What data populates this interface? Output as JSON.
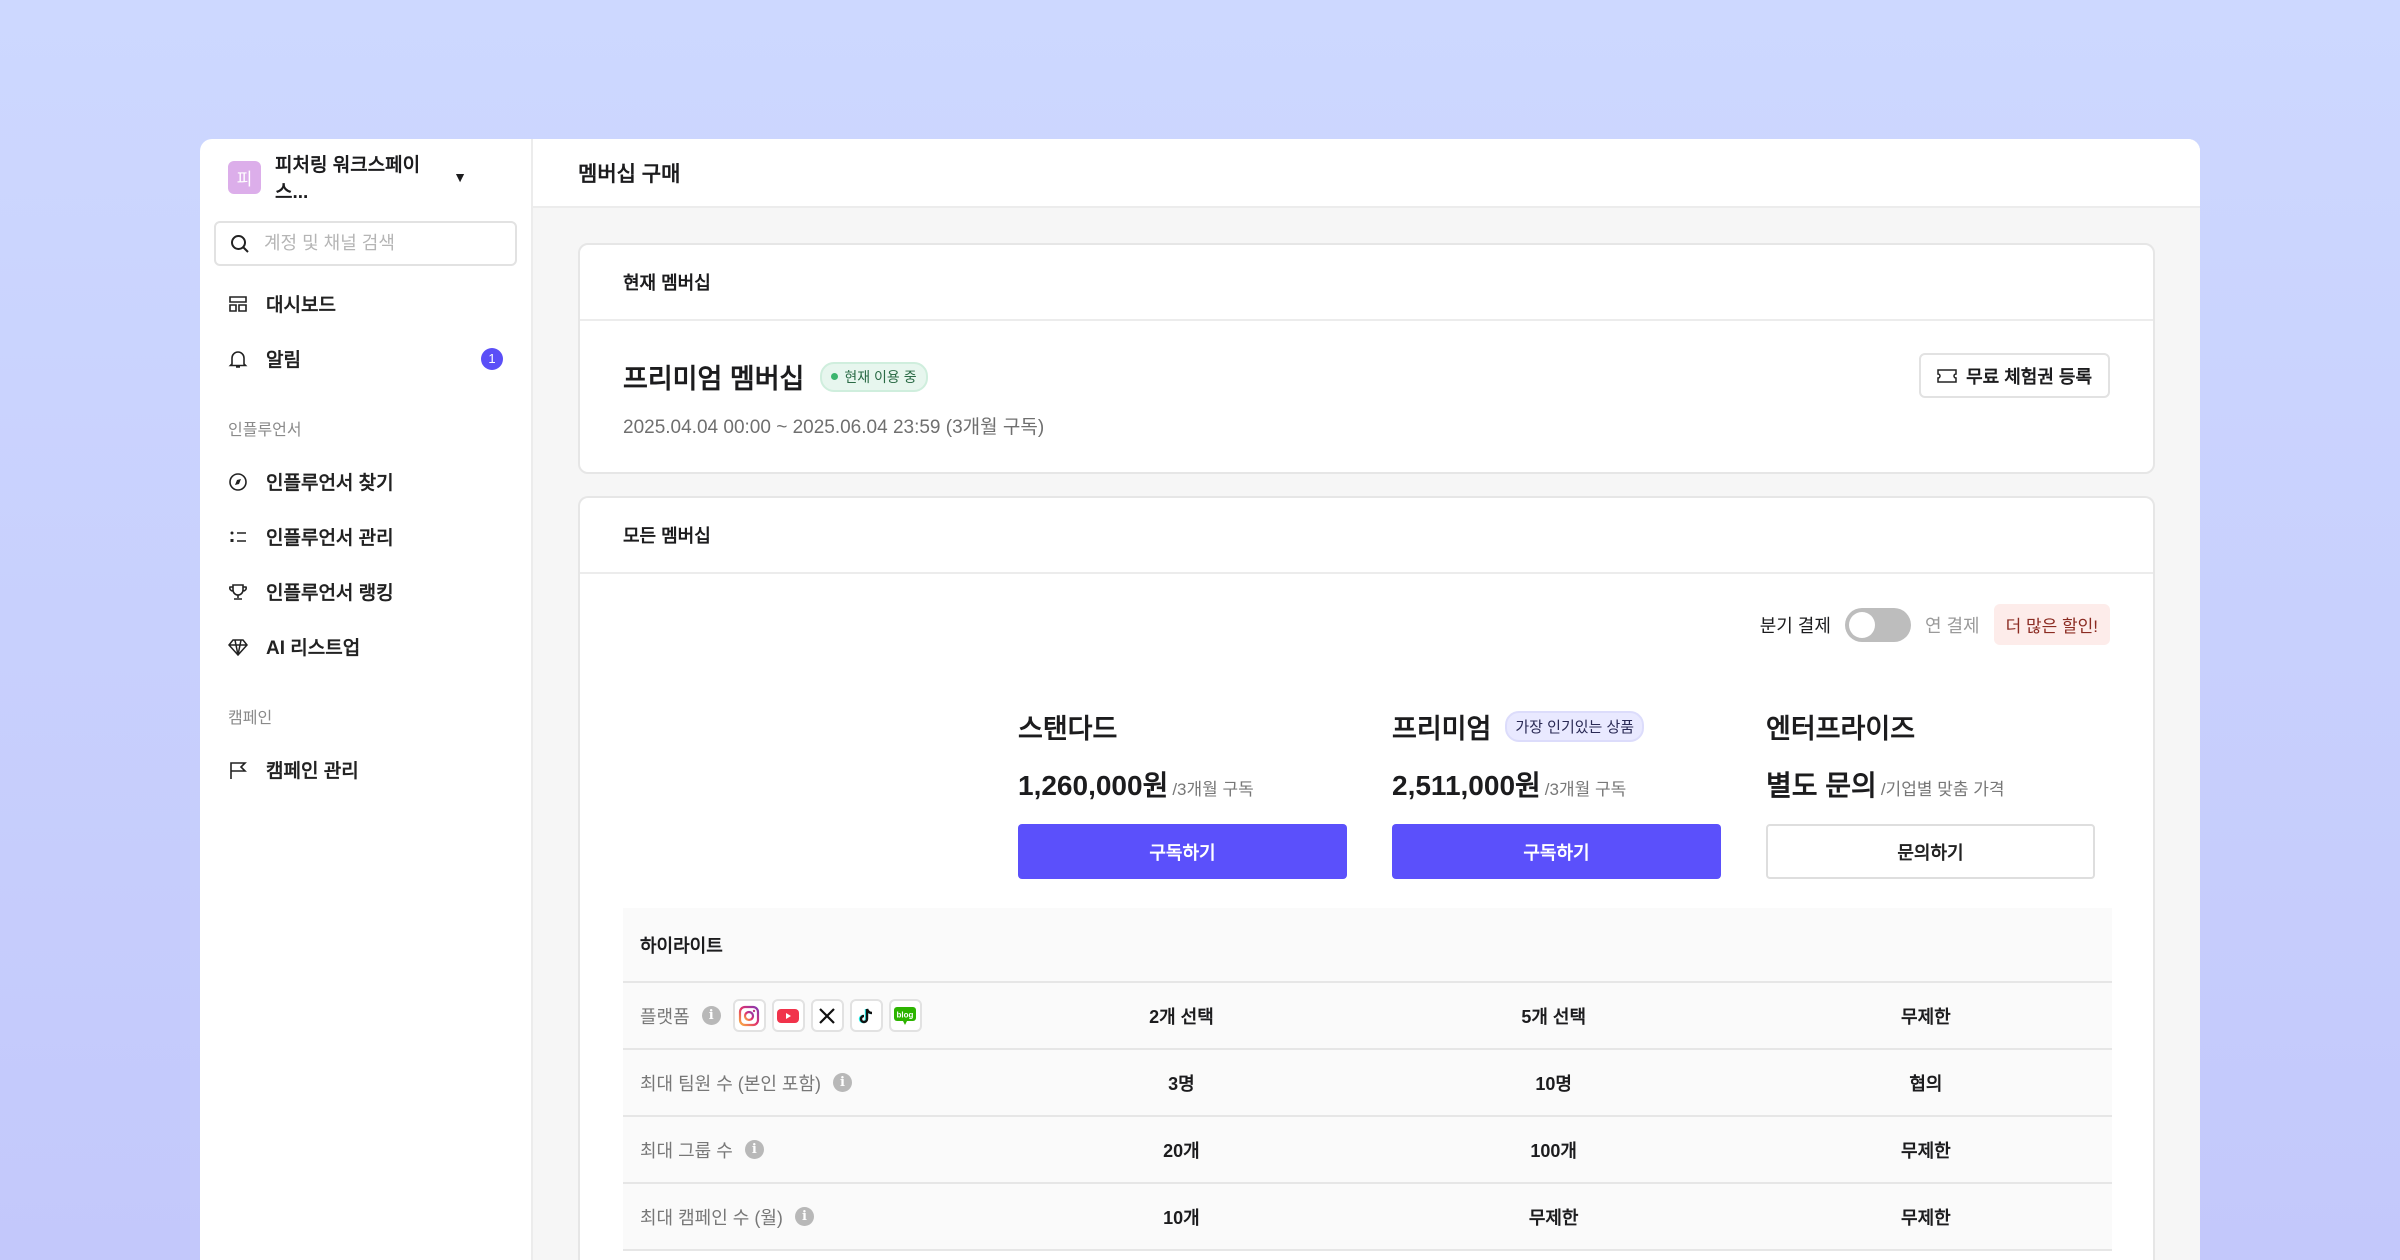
{
  "sidebar": {
    "workspace_initial": "피",
    "workspace_name": "피처링 워크스페이스...",
    "search_placeholder": "계정 및 채널 검색",
    "items": [
      {
        "label": "대시보드",
        "icon": "dashboard-icon"
      },
      {
        "label": "알림",
        "icon": "bell-icon",
        "badge": "1"
      }
    ],
    "section_influencer": "인플루언서",
    "influencer_items": [
      {
        "label": "인플루언서 찾기",
        "icon": "compass-icon"
      },
      {
        "label": "인플루언서 관리",
        "icon": "list-icon"
      },
      {
        "label": "인플루언서 랭킹",
        "icon": "trophy-icon"
      },
      {
        "label": "AI 리스트업",
        "icon": "diamond-icon"
      }
    ],
    "section_campaign": "캠페인",
    "campaign_items": [
      {
        "label": "캠페인 관리",
        "icon": "flag-icon"
      }
    ]
  },
  "header": {
    "title": "멤버십 구매"
  },
  "current": {
    "heading": "현재 멤버십",
    "plan": "프리미엄 멤버십",
    "status": "현재 이용 중",
    "period": "2025.04.04 00:00 ~ 2025.06.04 23:59 (3개월 구독)",
    "trial_button": "무료 체험권 등록"
  },
  "all": {
    "heading": "모든 멤버십",
    "billing_quarterly": "분기 결제",
    "billing_annual": "연 결제",
    "annual_enabled": false,
    "discount": "더 많은 할인!",
    "plans": [
      {
        "name": "스탠다드",
        "price": "1,260,000원",
        "unit": "/3개월 구독",
        "button": "구독하기"
      },
      {
        "name": "프리미엄",
        "tag": "가장 인기있는 상품",
        "price": "2,511,000원",
        "unit": "/3개월 구독",
        "button": "구독하기"
      },
      {
        "name": "엔터프라이즈",
        "price": "별도 문의",
        "unit": "/기업별 맞춤 가격",
        "button": "문의하기"
      }
    ],
    "table": {
      "heading": "하이라이트",
      "platforms": [
        "instagram",
        "youtube",
        "x",
        "tiktok",
        "blog"
      ],
      "rows": [
        {
          "label": "플랫폼",
          "values": [
            "2개 선택",
            "5개 선택",
            "무제한"
          ]
        },
        {
          "label": "최대 팀원 수 (본인 포함)",
          "values": [
            "3명",
            "10명",
            "협의"
          ]
        },
        {
          "label": "최대 그룹 수",
          "values": [
            "20개",
            "100개",
            "무제한"
          ]
        },
        {
          "label": "최대 캠페인 수 (월)",
          "values": [
            "10개",
            "무제한",
            "무제한"
          ]
        }
      ]
    }
  },
  "colors": {
    "accent": "#5b50fb",
    "status_green": "#3cb56e",
    "discount_bg": "#fdecea"
  }
}
